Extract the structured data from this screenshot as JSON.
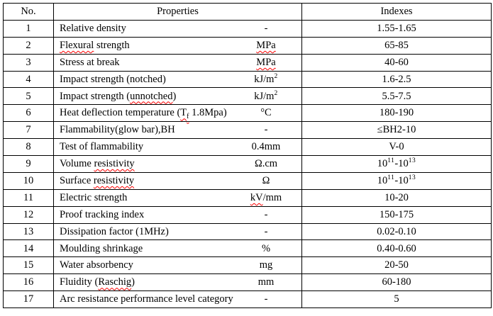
{
  "table": {
    "headers": {
      "no": "No.",
      "properties": "Properties",
      "indexes": "Indexes"
    },
    "rows": [
      {
        "no": "1",
        "property": [
          {
            "t": "Relative density"
          }
        ],
        "unit": [
          {
            "t": "-"
          }
        ],
        "index": [
          {
            "t": "1.55-1.65"
          }
        ]
      },
      {
        "no": "2",
        "property": [
          {
            "t": "Flexural",
            "sq": true
          },
          {
            "t": " strength"
          }
        ],
        "unit": [
          {
            "t": "MPa",
            "sq": true
          }
        ],
        "index": [
          {
            "t": "65-85"
          }
        ]
      },
      {
        "no": "3",
        "property": [
          {
            "t": "Stress at break"
          }
        ],
        "unit": [
          {
            "t": "MPa",
            "sq": true
          }
        ],
        "index": [
          {
            "t": "40-60"
          }
        ]
      },
      {
        "no": "4",
        "property": [
          {
            "t": "Impact strength (notched)"
          }
        ],
        "unit": [
          {
            "t": "kJ/m"
          },
          {
            "t": "2",
            "sup": true
          }
        ],
        "index": [
          {
            "t": "1.6-2.5"
          }
        ]
      },
      {
        "no": "5",
        "property": [
          {
            "t": "Impact strength ("
          },
          {
            "t": "unnotched",
            "sq": true
          },
          {
            "t": ")"
          }
        ],
        "unit": [
          {
            "t": "kJ/m"
          },
          {
            "t": "2",
            "sup": true
          }
        ],
        "index": [
          {
            "t": "5.5-7.5"
          }
        ]
      },
      {
        "no": "6",
        "property": [
          {
            "t": "Heat deflection temperature ("
          },
          {
            "t": "T",
            "sq": true
          },
          {
            "t": "f",
            "sub": true,
            "sq": true
          },
          {
            "t": " 1.8Mpa)"
          }
        ],
        "unit": [
          {
            "t": "°C"
          }
        ],
        "index": [
          {
            "t": "180-190"
          }
        ]
      },
      {
        "no": "7",
        "property": [
          {
            "t": "Flammability(glow bar),BH"
          }
        ],
        "unit": [
          {
            "t": "-"
          }
        ],
        "index": [
          {
            "t": "≤BH2-10"
          }
        ]
      },
      {
        "no": "8",
        "property": [
          {
            "t": "Test of flammability"
          }
        ],
        "unit": [
          {
            "t": "0.4mm"
          }
        ],
        "index": [
          {
            "t": "V-0"
          }
        ]
      },
      {
        "no": "9",
        "property": [
          {
            "t": "Volume "
          },
          {
            "t": "resistivity",
            "sq": true
          }
        ],
        "unit": [
          {
            "t": "Ω.cm"
          }
        ],
        "index": [
          {
            "t": "10"
          },
          {
            "t": "11",
            "sup": true
          },
          {
            "t": "-10"
          },
          {
            "t": "13",
            "sup": true
          }
        ]
      },
      {
        "no": "10",
        "property": [
          {
            "t": "Surface "
          },
          {
            "t": "resistivity",
            "sq": true
          }
        ],
        "unit": [
          {
            "t": "Ω"
          }
        ],
        "index": [
          {
            "t": "10"
          },
          {
            "t": "11",
            "sup": true
          },
          {
            "t": "-10"
          },
          {
            "t": "13",
            "sup": true
          }
        ]
      },
      {
        "no": "11",
        "property": [
          {
            "t": "Electric strength"
          }
        ],
        "unit": [
          {
            "t": "kV",
            "sq": true
          },
          {
            "t": "/mm"
          }
        ],
        "index": [
          {
            "t": "10-20"
          }
        ]
      },
      {
        "no": "12",
        "property": [
          {
            "t": "Proof tracking index"
          }
        ],
        "unit": [
          {
            "t": "-"
          }
        ],
        "index": [
          {
            "t": "150-175"
          }
        ]
      },
      {
        "no": "13",
        "property": [
          {
            "t": "Dissipation factor (1MHz)"
          }
        ],
        "unit": [
          {
            "t": "-"
          }
        ],
        "index": [
          {
            "t": "0.02-0.10"
          }
        ]
      },
      {
        "no": "14",
        "property": [
          {
            "t": "Moulding shrinkage"
          }
        ],
        "unit": [
          {
            "t": "%"
          }
        ],
        "index": [
          {
            "t": "0.40-0.60"
          }
        ]
      },
      {
        "no": "15",
        "property": [
          {
            "t": "Water absorbency"
          }
        ],
        "unit": [
          {
            "t": "mg"
          }
        ],
        "index": [
          {
            "t": "20-50"
          }
        ]
      },
      {
        "no": "16",
        "property": [
          {
            "t": "Fluidity ("
          },
          {
            "t": "Raschig",
            "sq": true
          },
          {
            "t": ")"
          }
        ],
        "unit": [
          {
            "t": "mm"
          }
        ],
        "index": [
          {
            "t": "60-180"
          }
        ]
      },
      {
        "no": "17",
        "property": [
          {
            "t": "Arc resistance performance level category"
          }
        ],
        "unit": [
          {
            "t": "-"
          }
        ],
        "index": [
          {
            "t": "5"
          }
        ]
      }
    ]
  },
  "colors": {
    "text": "#000000",
    "border": "#000000",
    "background": "#ffffff",
    "spellcheck_underline": "#ff0000"
  }
}
